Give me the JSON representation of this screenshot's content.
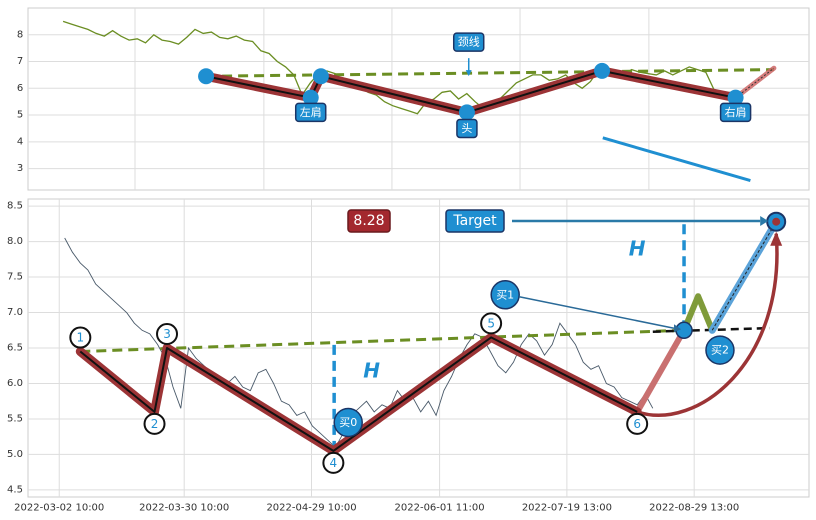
{
  "chart_data": [
    {
      "type": "line",
      "panel": "top",
      "ylim": [
        2.2,
        9.0
      ],
      "yticks": [
        3,
        4,
        5,
        6,
        7,
        8
      ],
      "grid": true,
      "price_series": [
        8.5,
        8.4,
        8.3,
        8.2,
        8.05,
        7.95,
        8.15,
        7.95,
        7.8,
        7.85,
        7.7,
        8.0,
        7.8,
        7.75,
        7.65,
        7.9,
        8.2,
        8.05,
        8.1,
        7.9,
        7.85,
        7.95,
        7.8,
        7.75,
        7.4,
        7.3,
        7.0,
        6.8,
        6.5,
        5.75,
        6.2,
        6.55,
        6.65,
        6.55,
        6.3,
        6.25,
        6.1,
        5.85,
        5.75,
        5.5,
        5.35,
        5.25,
        5.15,
        5.05,
        5.45,
        5.6,
        5.85,
        5.9,
        5.6,
        5.8,
        5.5,
        5.25,
        5.4,
        5.6,
        5.9,
        6.2,
        6.35,
        6.5,
        6.5,
        6.3,
        6.35,
        6.5,
        6.2,
        6.0,
        6.25,
        6.7,
        6.8,
        6.6,
        6.5,
        6.7,
        6.6,
        6.55,
        6.5,
        6.65,
        6.5,
        6.65,
        6.8,
        6.7,
        6.6,
        5.95,
        5.8,
        5.85,
        5.7
      ],
      "pattern_points": [
        {
          "x": 0.228,
          "y": 6.45
        },
        {
          "x": 0.362,
          "y": 5.65
        },
        {
          "x": 0.375,
          "y": 6.45
        },
        {
          "x": 0.562,
          "y": 5.1
        },
        {
          "x": 0.735,
          "y": 6.65
        },
        {
          "x": 0.906,
          "y": 5.65
        }
      ],
      "neckline": [
        {
          "x": 0.228,
          "y": 6.45
        },
        {
          "x": 0.955,
          "y": 6.7
        }
      ],
      "projection": [
        {
          "x": 0.906,
          "y": 5.65
        },
        {
          "x": 0.955,
          "y": 6.75
        }
      ],
      "trend_line": [
        {
          "x": 0.736,
          "y": 4.15
        },
        {
          "x": 0.925,
          "y": 2.55
        }
      ],
      "annotations": [
        {
          "text": "左肩",
          "x": 0.362,
          "y": 5.1
        },
        {
          "text": "头",
          "x": 0.562,
          "y": 4.5
        },
        {
          "text": "颈线",
          "x": 0.572,
          "y": 7.5
        },
        {
          "text": "右肩",
          "x": 0.906,
          "y": 5.1
        }
      ]
    },
    {
      "type": "line",
      "panel": "bottom",
      "ylim": [
        4.4,
        8.6
      ],
      "yticks": [
        4.5,
        5.0,
        5.5,
        6.0,
        6.5,
        7.0,
        7.5,
        8.0,
        8.5
      ],
      "grid": true,
      "xticks": [
        "2022-03-02 10:00",
        "2022-03-30 10:00",
        "2022-04-29 10:00",
        "2022-06-01 11:00",
        "2022-07-19 13:00",
        "2022-08-29 13:00"
      ],
      "price_series": [
        8.05,
        7.85,
        7.7,
        7.6,
        7.4,
        7.3,
        7.2,
        7.1,
        7.0,
        6.85,
        6.75,
        6.7,
        6.55,
        6.35,
        5.95,
        5.65,
        6.5,
        6.35,
        6.25,
        6.15,
        6.1,
        6.0,
        6.1,
        5.95,
        5.9,
        6.15,
        6.2,
        6.0,
        5.75,
        5.7,
        5.55,
        5.6,
        5.4,
        5.3,
        5.2,
        5.1,
        5.3,
        5.55,
        5.65,
        5.75,
        5.6,
        5.7,
        5.65,
        5.9,
        5.75,
        5.8,
        5.6,
        5.75,
        5.55,
        5.9,
        6.1,
        6.35,
        6.55,
        6.7,
        6.65,
        6.45,
        6.25,
        6.15,
        6.3,
        6.55,
        6.7,
        6.6,
        6.4,
        6.55,
        6.85,
        6.7,
        6.55,
        6.3,
        6.2,
        6.25,
        6.0,
        5.95,
        5.8,
        5.75,
        5.7,
        5.85,
        5.65
      ],
      "pattern_points": [
        {
          "label": "1",
          "x": 0.067,
          "y": 6.45
        },
        {
          "label": "2",
          "x": 0.162,
          "y": 5.6
        },
        {
          "label": "3",
          "x": 0.178,
          "y": 6.5
        },
        {
          "label": "4",
          "x": 0.391,
          "y": 5.05
        },
        {
          "label": "5",
          "x": 0.593,
          "y": 6.65
        },
        {
          "label": "6",
          "x": 0.78,
          "y": 5.6
        }
      ],
      "neckline": [
        {
          "x": 0.067,
          "y": 6.45
        },
        {
          "x": 0.84,
          "y": 6.75
        }
      ],
      "neckline_extension": [
        {
          "x": 0.8,
          "y": 6.73
        },
        {
          "x": 0.95,
          "y": 6.78
        }
      ],
      "breakout": [
        {
          "x": 0.78,
          "y": 5.6
        },
        {
          "x": 0.84,
          "y": 6.75
        },
        {
          "x": 0.858,
          "y": 7.23
        },
        {
          "x": 0.876,
          "y": 6.75
        },
        {
          "x": 0.958,
          "y": 8.28
        }
      ],
      "height_markers": [
        {
          "label": "H",
          "x": 0.392,
          "from": 5.05,
          "to": 6.6,
          "label_x": 0.44,
          "label_y": 6.18
        },
        {
          "label": "H",
          "x": 0.84,
          "from": 6.75,
          "to": 8.28,
          "label_x": 0.78,
          "label_y": 7.9
        }
      ],
      "target": {
        "label": "Target",
        "value": "8.28",
        "x": 0.958,
        "y": 8.28
      },
      "buy_points": [
        {
          "label": "买0",
          "x": 0.41,
          "y": 5.45
        },
        {
          "label": "买1",
          "x": 0.611,
          "y": 7.25
        },
        {
          "label": "买2",
          "x": 0.886,
          "y": 6.47
        }
      ]
    }
  ]
}
